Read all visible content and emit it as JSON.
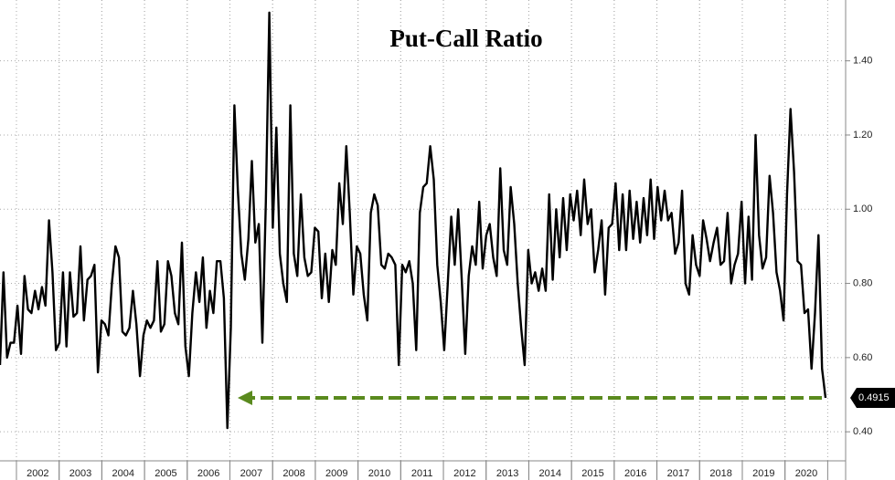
{
  "chart_data": {
    "type": "line",
    "title": "Put-Call Ratio",
    "series": [
      {
        "name": "Put-Call Ratio",
        "color": "#000000",
        "values": [
          0.58,
          0.83,
          0.6,
          0.64,
          0.64,
          0.74,
          0.61,
          0.82,
          0.73,
          0.72,
          0.78,
          0.73,
          0.79,
          0.74,
          0.97,
          0.83,
          0.62,
          0.64,
          0.83,
          0.63,
          0.83,
          0.71,
          0.72,
          0.9,
          0.7,
          0.81,
          0.82,
          0.85,
          0.56,
          0.7,
          0.69,
          0.66,
          0.8,
          0.9,
          0.87,
          0.67,
          0.66,
          0.68,
          0.78,
          0.69,
          0.55,
          0.66,
          0.7,
          0.68,
          0.7,
          0.86,
          0.67,
          0.69,
          0.86,
          0.82,
          0.72,
          0.69,
          0.91,
          0.63,
          0.55,
          0.72,
          0.83,
          0.75,
          0.87,
          0.68,
          0.78,
          0.72,
          0.86,
          0.86,
          0.76,
          0.41,
          0.68,
          1.28,
          1.05,
          0.88,
          0.81,
          0.92,
          1.13,
          0.91,
          0.96,
          0.64,
          1.02,
          1.53,
          0.95,
          1.22,
          0.88,
          0.8,
          0.75,
          1.28,
          0.88,
          0.82,
          1.04,
          0.87,
          0.82,
          0.83,
          0.95,
          0.94,
          0.76,
          0.88,
          0.75,
          0.89,
          0.85,
          1.07,
          0.96,
          1.17,
          0.99,
          0.77,
          0.9,
          0.88,
          0.77,
          0.7,
          0.99,
          1.04,
          1.01,
          0.85,
          0.84,
          0.88,
          0.87,
          0.85,
          0.58,
          0.85,
          0.83,
          0.86,
          0.8,
          0.62,
          0.99,
          1.06,
          1.07,
          1.17,
          1.08,
          0.85,
          0.75,
          0.62,
          0.8,
          0.98,
          0.85,
          1.0,
          0.81,
          0.61,
          0.82,
          0.9,
          0.85,
          1.02,
          0.84,
          0.93,
          0.96,
          0.87,
          0.82,
          1.11,
          0.89,
          0.85,
          1.06,
          0.96,
          0.8,
          0.68,
          0.58,
          0.89,
          0.8,
          0.83,
          0.78,
          0.84,
          0.78,
          1.04,
          0.81,
          1.0,
          0.87,
          1.03,
          0.89,
          1.04,
          0.97,
          1.05,
          0.93,
          1.08,
          0.96,
          1.0,
          0.83,
          0.89,
          0.97,
          0.77,
          0.95,
          0.96,
          1.07,
          0.89,
          1.04,
          0.89,
          1.05,
          0.92,
          1.02,
          0.91,
          1.03,
          0.93,
          1.08,
          0.92,
          1.06,
          0.97,
          1.05,
          0.97,
          0.99,
          0.88,
          0.91,
          1.05,
          0.8,
          0.77,
          0.93,
          0.85,
          0.82,
          0.97,
          0.92,
          0.86,
          0.91,
          0.95,
          0.85,
          0.86,
          0.99,
          0.8,
          0.85,
          0.88,
          1.02,
          0.8,
          0.98,
          0.81,
          1.2,
          0.93,
          0.84,
          0.87,
          1.09,
          0.99,
          0.83,
          0.78,
          0.7,
          1.04,
          1.27,
          1.1,
          0.86,
          0.85,
          0.72,
          0.73,
          0.57,
          0.72,
          0.93,
          0.57,
          0.4915
        ]
      }
    ],
    "xlim": [
      2001.615,
      2021.42
    ],
    "xticks": [
      {
        "value": 2002.5,
        "label": "2002"
      },
      {
        "value": 2003.5,
        "label": "2003"
      },
      {
        "value": 2004.5,
        "label": "2004"
      },
      {
        "value": 2005.5,
        "label": "2005"
      },
      {
        "value": 2006.5,
        "label": "2006"
      },
      {
        "value": 2007.5,
        "label": "2007"
      },
      {
        "value": 2008.5,
        "label": "2008"
      },
      {
        "value": 2009.5,
        "label": "2009"
      },
      {
        "value": 2010.5,
        "label": "2010"
      },
      {
        "value": 2011.5,
        "label": "2011"
      },
      {
        "value": 2012.5,
        "label": "2012"
      },
      {
        "value": 2013.5,
        "label": "2013"
      },
      {
        "value": 2014.5,
        "label": "2014"
      },
      {
        "value": 2015.5,
        "label": "2015"
      },
      {
        "value": 2016.5,
        "label": "2016"
      },
      {
        "value": 2017.5,
        "label": "2017"
      },
      {
        "value": 2018.5,
        "label": "2018"
      },
      {
        "value": 2019.5,
        "label": "2019"
      },
      {
        "value": 2020.5,
        "label": "2020"
      }
    ],
    "ylim": [
      0.27,
      1.564
    ],
    "yticks": [
      {
        "value": 0.4,
        "label": "0.40"
      },
      {
        "value": 0.6,
        "label": "0.60"
      },
      {
        "value": 0.8,
        "label": "0.80"
      },
      {
        "value": 1.0,
        "label": "1.00"
      },
      {
        "value": 1.2,
        "label": "1.20"
      },
      {
        "value": 1.4,
        "label": "1.40"
      }
    ],
    "grid": true,
    "arrow_color": "#5a8a1e"
  }
}
